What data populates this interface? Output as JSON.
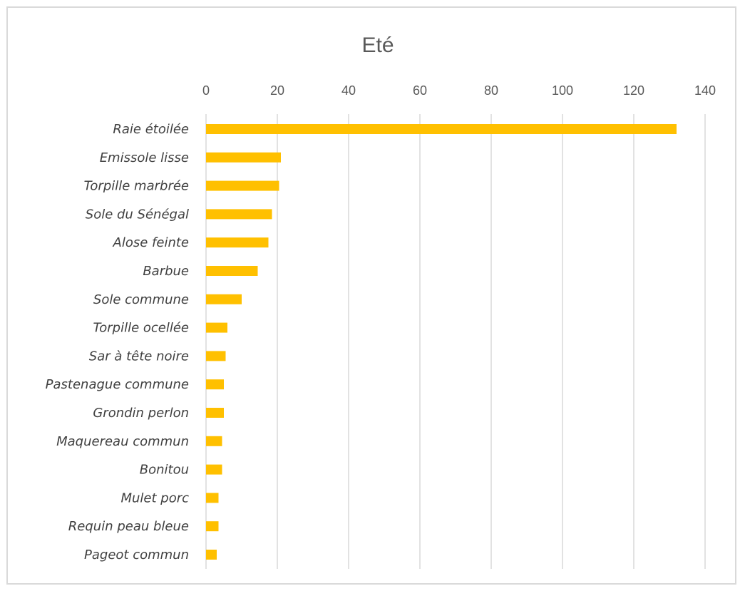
{
  "chart_data": {
    "type": "bar",
    "orientation": "horizontal",
    "title": "Eté",
    "xlabel": "",
    "ylabel": "",
    "xlim": [
      0,
      140
    ],
    "ticks": [
      "0",
      "20",
      "40",
      "60",
      "80",
      "100",
      "120",
      "140"
    ],
    "tick_values": [
      0,
      20,
      40,
      60,
      80,
      100,
      120,
      140
    ],
    "axis_position": "top",
    "grid": true,
    "legend": "none",
    "bar_color": "#ffc000",
    "categories": [
      "Raie étoilée",
      "Emissole lisse",
      "Torpille marbrée",
      "Sole du Sénégal",
      "Alose feinte",
      "Barbue",
      "Sole commune",
      "Torpille ocellée",
      "Sar à tête noire",
      "Pastenague commune",
      "Grondin perlon",
      "Maquereau commun",
      "Bonitou",
      "Mulet porc",
      "Requin peau bleue",
      "Pageot commun"
    ],
    "values": [
      132,
      21,
      20.5,
      18.5,
      17.5,
      14.5,
      10,
      6,
      5.5,
      5,
      5,
      4.5,
      4.5,
      3.5,
      3.5,
      3
    ]
  }
}
